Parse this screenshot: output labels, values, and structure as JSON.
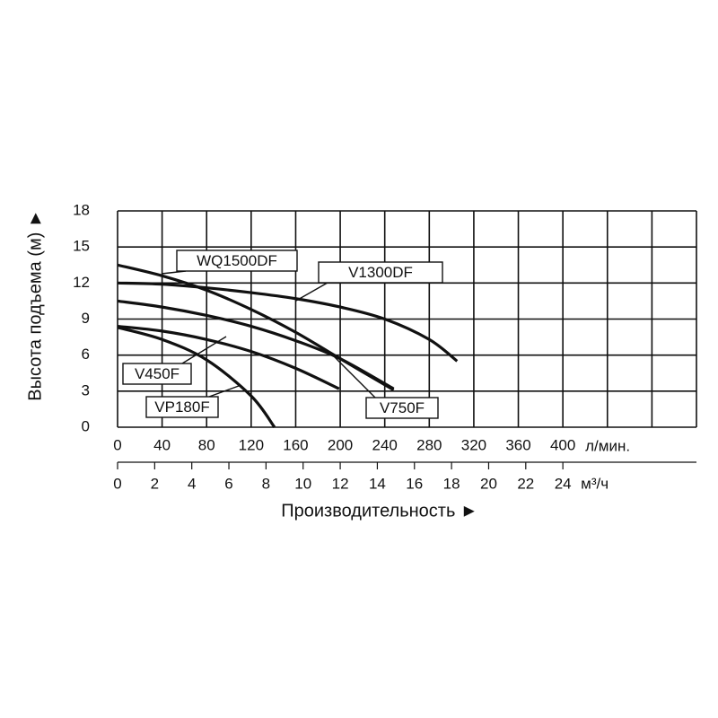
{
  "chart_data": {
    "type": "line",
    "xlabel": "Производительность ►",
    "ylabel": "Высота подъема (м) ►",
    "x_unit": "л/мин.",
    "x2_unit": "м³/ч",
    "xlim": [
      0,
      520
    ],
    "xticks": [
      0,
      40,
      80,
      120,
      160,
      200,
      240,
      280,
      320,
      360,
      400
    ],
    "xgrid": [
      0,
      40,
      80,
      120,
      160,
      200,
      240,
      280,
      320,
      360,
      400,
      440,
      480,
      520
    ],
    "x2lim": [
      0,
      31.2
    ],
    "x2ticks": [
      0,
      2,
      4,
      6,
      8,
      10,
      12,
      14,
      16,
      18,
      20,
      22,
      24
    ],
    "ylim": [
      0,
      18
    ],
    "yticks": [
      0,
      3,
      6,
      9,
      12,
      15,
      18
    ],
    "grid": true,
    "color": "#111111",
    "series": [
      {
        "name": "WQ1500DF",
        "x": [
          0,
          40,
          80,
          120,
          160,
          200,
          248
        ],
        "values": [
          13.5,
          12.6,
          11.4,
          9.8,
          7.9,
          5.7,
          3.1
        ]
      },
      {
        "name": "V1300DF",
        "x": [
          0,
          40,
          80,
          120,
          160,
          200,
          240,
          280,
          305
        ],
        "values": [
          12,
          11.9,
          11.6,
          11.2,
          10.7,
          10,
          9,
          7.3,
          5.5
        ]
      },
      {
        "name": "V750F",
        "x": [
          0,
          40,
          80,
          120,
          160,
          200,
          248
        ],
        "values": [
          10.5,
          10,
          9.3,
          8.4,
          7.2,
          5.7,
          3.2
        ]
      },
      {
        "name": "V450F",
        "x": [
          0,
          40,
          80,
          120,
          160,
          199
        ],
        "values": [
          8.4,
          8,
          7.3,
          6.3,
          4.9,
          3.2
        ]
      },
      {
        "name": "VP180F",
        "x": [
          0,
          40,
          80,
          120,
          141
        ],
        "values": [
          8.3,
          7.3,
          5.6,
          2.6,
          0
        ]
      }
    ]
  }
}
